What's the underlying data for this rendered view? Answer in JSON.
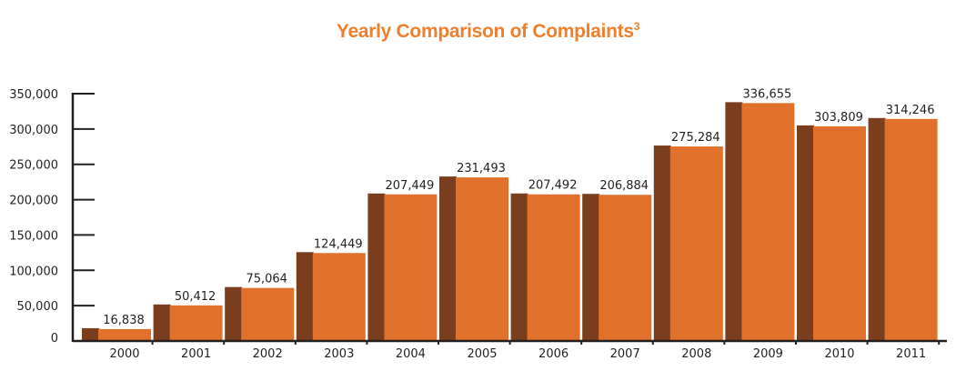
{
  "chart_data": {
    "type": "bar",
    "title": "Yearly Comparison of Complaints",
    "title_superscript": "3",
    "xlabel": "",
    "ylabel": "",
    "categories": [
      "2000",
      "2001",
      "2002",
      "2003",
      "2004",
      "2005",
      "2006",
      "2007",
      "2008",
      "2009",
      "2010",
      "2011"
    ],
    "values": [
      16838,
      50412,
      75064,
      124449,
      207449,
      231493,
      207492,
      206884,
      275284,
      336655,
      303809,
      314246
    ],
    "data_labels": [
      "16,838",
      "50,412",
      "75,064",
      "124,449",
      "207,449",
      "231,493",
      "207,492",
      "206,884",
      "275,284",
      "336,655",
      "303,809",
      "314,246"
    ],
    "yticks": [
      0,
      50000,
      100000,
      150000,
      200000,
      250000,
      300000,
      350000
    ],
    "ytick_labels": [
      "0",
      "50,000",
      "100,000",
      "150,000",
      "200,000",
      "250,000",
      "300,000",
      "350,000"
    ],
    "ylim": [
      0,
      350000
    ],
    "grid": false,
    "colors": {
      "title": "#f07e2b",
      "bar": "#e0702a",
      "bar_side": "#7a3e1e",
      "axis": "#231f20"
    }
  }
}
